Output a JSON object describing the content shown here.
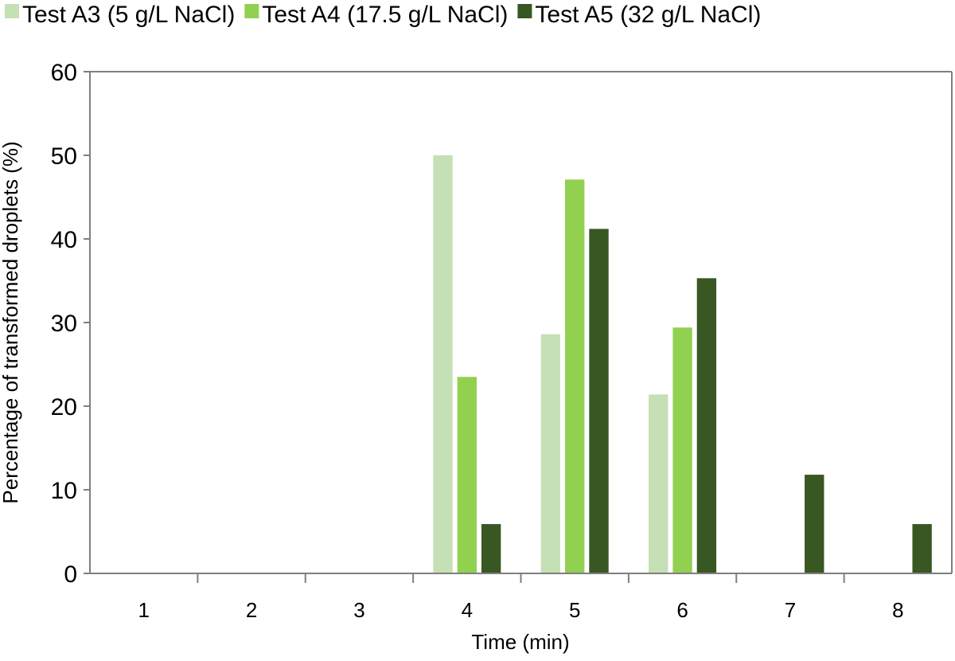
{
  "chart_data": {
    "type": "bar",
    "xlabel": "Time (min)",
    "ylabel": "Percentage of transformed droplets (%)",
    "ylim": [
      0,
      60
    ],
    "yticks": [
      "0",
      "10",
      "20",
      "30",
      "40",
      "50",
      "60"
    ],
    "categories": [
      "1",
      "2",
      "3",
      "4",
      "5",
      "6",
      "7",
      "8"
    ],
    "grid": false,
    "legend_position": "top",
    "series": [
      {
        "name": "Test A3 (5 g/L NaCl)",
        "color": "#c4e0b4",
        "values": [
          0,
          0,
          0,
          50,
          28.6,
          21.4,
          0,
          0
        ]
      },
      {
        "name": "Test A4 (17.5 g/L NaCl)",
        "color": "#92d050",
        "values": [
          0,
          0,
          0,
          23.5,
          47.1,
          29.4,
          0,
          0
        ]
      },
      {
        "name": "Test A5 (32 g/L NaCl)",
        "color": "#385723",
        "values": [
          0,
          0,
          0,
          5.9,
          41.2,
          35.3,
          11.8,
          5.9
        ]
      }
    ]
  }
}
